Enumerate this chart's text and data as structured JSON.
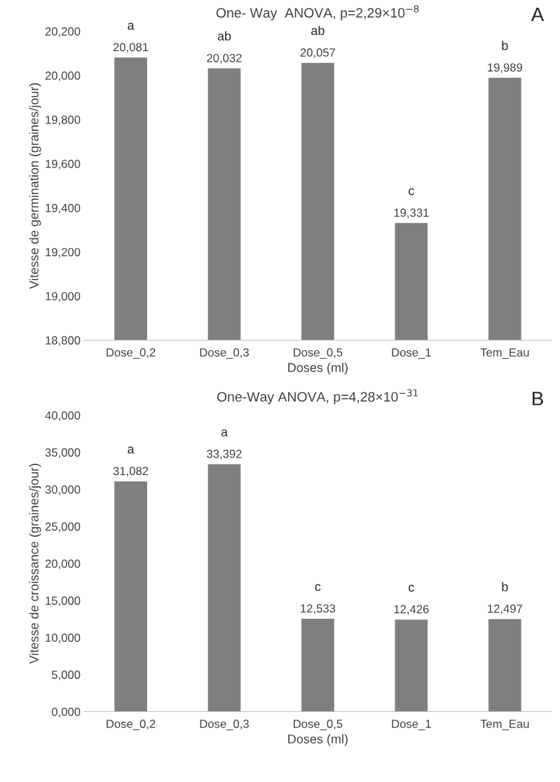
{
  "chart_data": [
    {
      "type": "bar",
      "title": "One- Way  ANOVA, p=2,29×10$^{−8}$",
      "xlabel": "Doses (ml)",
      "ylabel": "Vitesse de germination (graines/jour)",
      "categories": [
        "Dose_0,2",
        "Dose_0,3",
        "Dose_0,5",
        "Dose_1",
        "Tem_Eau"
      ],
      "values": [
        20.081,
        20.032,
        20.057,
        19.331,
        19.989
      ],
      "color": "#7f7f7f",
      "value_labels": [
        "20,081",
        "20,032",
        "20,057",
        "19,331",
        "19,989"
      ],
      "ylim": [
        18.8,
        20.2
      ],
      "yticks": [
        {
          "value": 18.8,
          "label": "18,800"
        },
        {
          "value": 19.0,
          "label": "19,000"
        },
        {
          "value": 19.2,
          "label": "19,200"
        },
        {
          "value": 19.4,
          "label": "19,400"
        },
        {
          "value": 19.6,
          "label": "19,600"
        },
        {
          "value": 19.8,
          "label": "19,800"
        },
        {
          "value": 20.0,
          "label": "20,000"
        },
        {
          "value": 20.2,
          "label": "20,200"
        }
      ],
      "grid": false,
      "legend": false,
      "annotations": [
        "A",
        {
          "text": "a",
          "x": "Dose_0,2",
          "y": 20.081
        },
        {
          "text": "ab",
          "x": "Dose_0,3",
          "y": 20.032
        },
        {
          "text": "ab",
          "x": "Dose_0,5",
          "y": 20.057
        },
        {
          "text": "c",
          "x": "Dose_1",
          "y": 19.331
        },
        {
          "text": "b",
          "x": "Tem_Eau",
          "y": 19.989
        }
      ]
    },
    {
      "type": "bar",
      "title": "One-Way ANOVA, p=4,28×10$^{−31}$",
      "xlabel": "Doses (ml)",
      "ylabel": "Vitesse de croissance (graines/jour)",
      "categories": [
        "Dose_0,2",
        "Dose_0,3",
        "Dose_0,5",
        "Dose_1",
        "Tem_Eau"
      ],
      "values": [
        31.082,
        33.392,
        12.533,
        12.426,
        12.497
      ],
      "color": "#7f7f7f",
      "value_labels": [
        "31,082",
        "33,392",
        "12,533",
        "12,426",
        "12,497"
      ],
      "ylim": [
        0,
        40
      ],
      "yticks": [
        {
          "value": 0,
          "label": "0,000"
        },
        {
          "value": 5,
          "label": "5,000"
        },
        {
          "value": 10,
          "label": "10,000"
        },
        {
          "value": 15,
          "label": "15,000"
        },
        {
          "value": 20,
          "label": "20,000"
        },
        {
          "value": 25,
          "label": "25,000"
        },
        {
          "value": 30,
          "label": "30,000"
        },
        {
          "value": 35,
          "label": "35,000"
        },
        {
          "value": 40,
          "label": "40,000"
        }
      ],
      "grid": false,
      "legend": false,
      "annotations": [
        "B",
        {
          "text": "a",
          "x": "Dose_0,2",
          "y": 31.082
        },
        {
          "text": "a",
          "x": "Dose_0,3",
          "y": 33.392
        },
        {
          "text": "c",
          "x": "Dose_0,5",
          "y": 12.533
        },
        {
          "text": "c",
          "x": "Dose_1",
          "y": 12.426
        },
        {
          "text": "b",
          "x": "Tem_Eau",
          "y": 12.497
        }
      ]
    }
  ]
}
